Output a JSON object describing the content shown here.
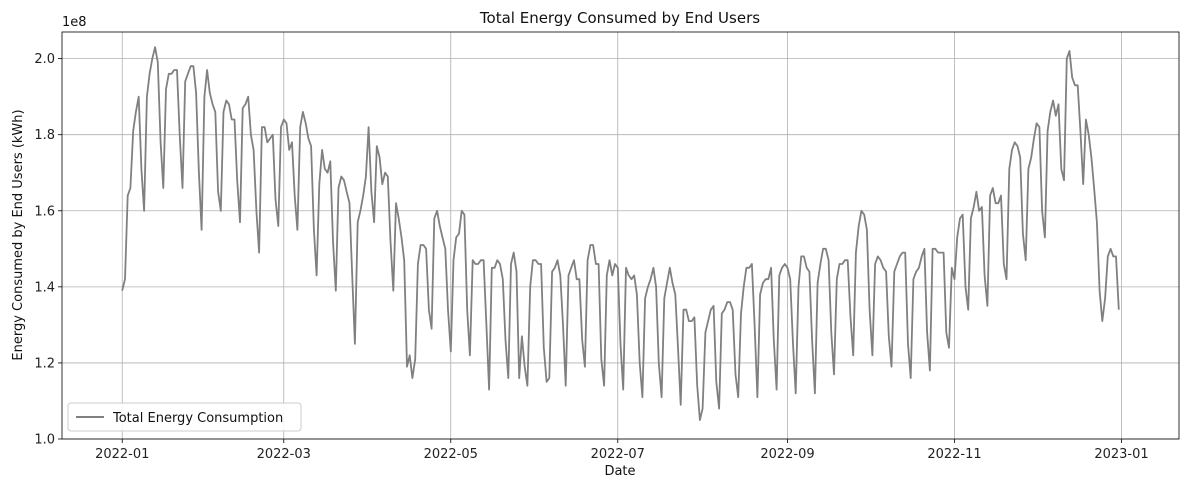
{
  "chart_data": {
    "type": "line",
    "title": "Total Energy Consumed by End Users",
    "xlabel": "Date",
    "ylabel": "Energy Consumed by End Users (kWh)",
    "y_offset_label": "1e8",
    "xlim": [
      "2021-12-10",
      "2023-01-22"
    ],
    "ylim": [
      1.0,
      2.07
    ],
    "y_scale_note": "values in units of 1e8 kWh",
    "x_ticks": [
      "2022-01",
      "2022-03",
      "2022-05",
      "2022-07",
      "2022-09",
      "2022-11",
      "2023-01"
    ],
    "y_ticks": [
      "1.0",
      "1.2",
      "1.4",
      "1.6",
      "1.8",
      "2.0"
    ],
    "y_tick_values": [
      1.0,
      1.2,
      1.4,
      1.6,
      1.8,
      2.0
    ],
    "grid": true,
    "legend_position": "bottom-left",
    "series": [
      {
        "name": "Total Energy Consumption",
        "color": "#808080",
        "start_date": "2022-01-01",
        "step_days": 1,
        "values": [
          1.39,
          1.42,
          1.64,
          1.66,
          1.81,
          1.86,
          1.9,
          1.71,
          1.6,
          1.9,
          1.96,
          2.0,
          2.03,
          1.99,
          1.78,
          1.66,
          1.92,
          1.96,
          1.96,
          1.97,
          1.97,
          1.8,
          1.66,
          1.94,
          1.96,
          1.98,
          1.98,
          1.91,
          1.7,
          1.55,
          1.9,
          1.97,
          1.91,
          1.88,
          1.86,
          1.65,
          1.6,
          1.86,
          1.89,
          1.88,
          1.84,
          1.84,
          1.68,
          1.57,
          1.87,
          1.88,
          1.9,
          1.8,
          1.76,
          1.6,
          1.49,
          1.82,
          1.82,
          1.78,
          1.79,
          1.8,
          1.63,
          1.56,
          1.82,
          1.84,
          1.83,
          1.76,
          1.78,
          1.64,
          1.55,
          1.82,
          1.86,
          1.83,
          1.79,
          1.77,
          1.55,
          1.43,
          1.67,
          1.76,
          1.71,
          1.7,
          1.73,
          1.52,
          1.39,
          1.66,
          1.69,
          1.68,
          1.65,
          1.62,
          1.43,
          1.25,
          1.57,
          1.6,
          1.64,
          1.69,
          1.82,
          1.65,
          1.57,
          1.77,
          1.74,
          1.67,
          1.7,
          1.69,
          1.52,
          1.39,
          1.62,
          1.58,
          1.53,
          1.47,
          1.19,
          1.22,
          1.16,
          1.21,
          1.46,
          1.51,
          1.51,
          1.5,
          1.34,
          1.29,
          1.58,
          1.6,
          1.56,
          1.53,
          1.5,
          1.34,
          1.23,
          1.47,
          1.53,
          1.54,
          1.6,
          1.59,
          1.34,
          1.22,
          1.47,
          1.46,
          1.46,
          1.47,
          1.47,
          1.3,
          1.13,
          1.45,
          1.45,
          1.47,
          1.46,
          1.42,
          1.26,
          1.16,
          1.46,
          1.49,
          1.44,
          1.16,
          1.27,
          1.19,
          1.14,
          1.4,
          1.47,
          1.47,
          1.46,
          1.46,
          1.24,
          1.15,
          1.16,
          1.44,
          1.45,
          1.47,
          1.43,
          1.3,
          1.14,
          1.43,
          1.45,
          1.47,
          1.42,
          1.42,
          1.26,
          1.19,
          1.47,
          1.51,
          1.51,
          1.46,
          1.46,
          1.21,
          1.14,
          1.43,
          1.47,
          1.43,
          1.46,
          1.45,
          1.25,
          1.13,
          1.45,
          1.43,
          1.42,
          1.43,
          1.38,
          1.2,
          1.11,
          1.37,
          1.4,
          1.42,
          1.45,
          1.4,
          1.2,
          1.11,
          1.37,
          1.41,
          1.45,
          1.41,
          1.38,
          1.24,
          1.09,
          1.34,
          1.34,
          1.31,
          1.31,
          1.32,
          1.14,
          1.05,
          1.08,
          1.28,
          1.31,
          1.34,
          1.35,
          1.15,
          1.08,
          1.33,
          1.34,
          1.36,
          1.36,
          1.34,
          1.17,
          1.11,
          1.33,
          1.4,
          1.45,
          1.45,
          1.46,
          1.3,
          1.11,
          1.38,
          1.41,
          1.42,
          1.42,
          1.45,
          1.26,
          1.13,
          1.43,
          1.45,
          1.46,
          1.45,
          1.42,
          1.25,
          1.12,
          1.4,
          1.48,
          1.48,
          1.45,
          1.44,
          1.26,
          1.12,
          1.41,
          1.46,
          1.5,
          1.5,
          1.47,
          1.28,
          1.17,
          1.42,
          1.46,
          1.46,
          1.47,
          1.47,
          1.32,
          1.22,
          1.49,
          1.56,
          1.6,
          1.59,
          1.55,
          1.34,
          1.22,
          1.46,
          1.48,
          1.47,
          1.45,
          1.44,
          1.27,
          1.19,
          1.44,
          1.46,
          1.48,
          1.49,
          1.49,
          1.25,
          1.16,
          1.42,
          1.44,
          1.45,
          1.48,
          1.5,
          1.28,
          1.18,
          1.5,
          1.5,
          1.49,
          1.49,
          1.49,
          1.28,
          1.24,
          1.45,
          1.42,
          1.53,
          1.58,
          1.59,
          1.4,
          1.34,
          1.58,
          1.61,
          1.65,
          1.6,
          1.61,
          1.43,
          1.35,
          1.64,
          1.66,
          1.62,
          1.62,
          1.64,
          1.46,
          1.42,
          1.71,
          1.76,
          1.78,
          1.77,
          1.74,
          1.54,
          1.47,
          1.71,
          1.74,
          1.79,
          1.83,
          1.82,
          1.6,
          1.53,
          1.81,
          1.86,
          1.89,
          1.85,
          1.88,
          1.71,
          1.68,
          2.0,
          2.02,
          1.95,
          1.93,
          1.93,
          1.81,
          1.67,
          1.84,
          1.8,
          1.74,
          1.66,
          1.57,
          1.39,
          1.31,
          1.37,
          1.48,
          1.5,
          1.48,
          1.48,
          1.34
        ]
      }
    ]
  }
}
